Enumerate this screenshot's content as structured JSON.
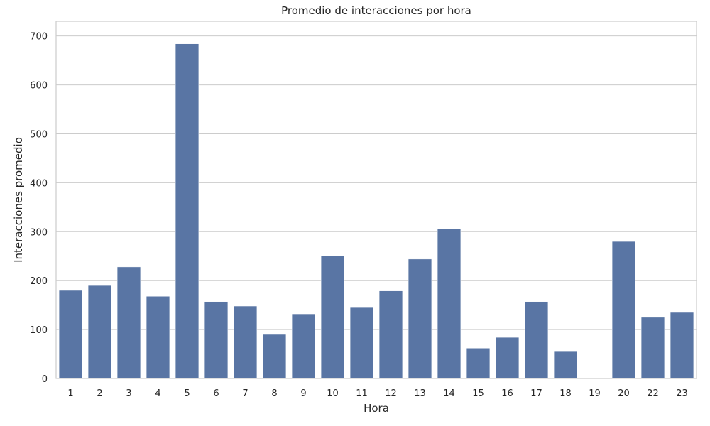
{
  "chart_data": {
    "type": "bar",
    "title": "Promedio de interacciones por hora",
    "xlabel": "Hora",
    "ylabel": "Interacciones promedio",
    "categories": [
      "1",
      "2",
      "3",
      "4",
      "5",
      "6",
      "7",
      "8",
      "9",
      "10",
      "11",
      "12",
      "13",
      "14",
      "15",
      "16",
      "17",
      "18",
      "19",
      "20",
      "22",
      "23"
    ],
    "values": [
      180,
      190,
      228,
      168,
      684,
      157,
      148,
      90,
      132,
      251,
      145,
      179,
      244,
      306,
      62,
      84,
      157,
      55,
      1,
      280,
      125,
      135
    ],
    "ylim": [
      0,
      730
    ],
    "yticks": [
      0,
      100,
      200,
      300,
      400,
      500,
      600,
      700
    ],
    "grid": true,
    "legend": "none",
    "colors": {
      "bar": "#5975a4",
      "grid": "#cccccc",
      "frame": "#cccccc",
      "text": "#262626",
      "background": "#ffffff"
    }
  }
}
